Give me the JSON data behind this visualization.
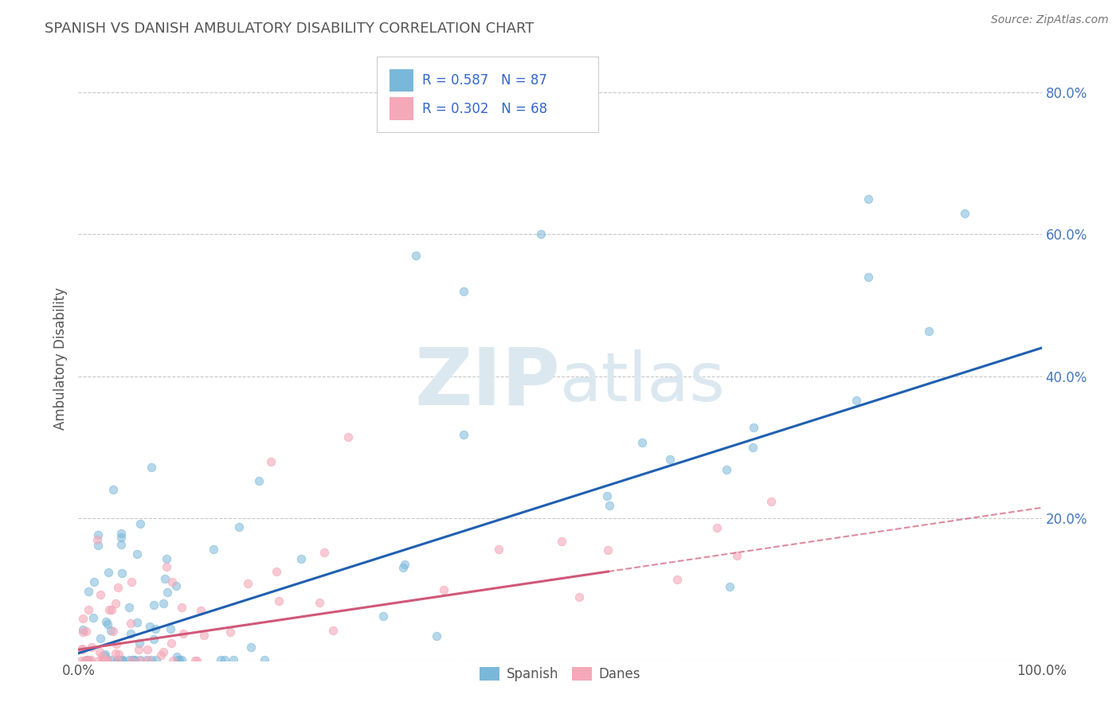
{
  "title": "SPANISH VS DANISH AMBULATORY DISABILITY CORRELATION CHART",
  "source": "Source: ZipAtlas.com",
  "ylabel": "Ambulatory Disability",
  "xlim": [
    0,
    1
  ],
  "ylim": [
    0,
    0.85
  ],
  "ytick_vals": [
    0.0,
    0.2,
    0.4,
    0.6,
    0.8
  ],
  "ytick_labels": [
    "",
    "20.0%",
    "40.0%",
    "60.0%",
    "80.0%"
  ],
  "xtick_vals": [
    0.0,
    1.0
  ],
  "xtick_labels": [
    "0.0%",
    "100.0%"
  ],
  "legend_r1": "R = 0.587",
  "legend_n1": "N = 87",
  "legend_r2": "R = 0.302",
  "legend_n2": "N = 68",
  "spanish_color": "#7ab8d9",
  "danes_color": "#f4a8b8",
  "trend_blue": "#2060b0",
  "trend_pink": "#d05878",
  "background": "#ffffff",
  "grid_color": "#c8c8c8",
  "title_color": "#555555",
  "watermark_color": "#dce8f0",
  "legend_text_color": "#3366cc",
  "bottom_legend_color": "#555555",
  "spanish_n": 87,
  "danes_n": 68,
  "spanish_trend_start": 0.01,
  "spanish_trend_end": 0.44,
  "danes_trend_solid_end_x": 0.55,
  "danes_trend_start": 0.015,
  "danes_trend_at_solid_end": 0.175,
  "danes_trend_end": 0.215
}
